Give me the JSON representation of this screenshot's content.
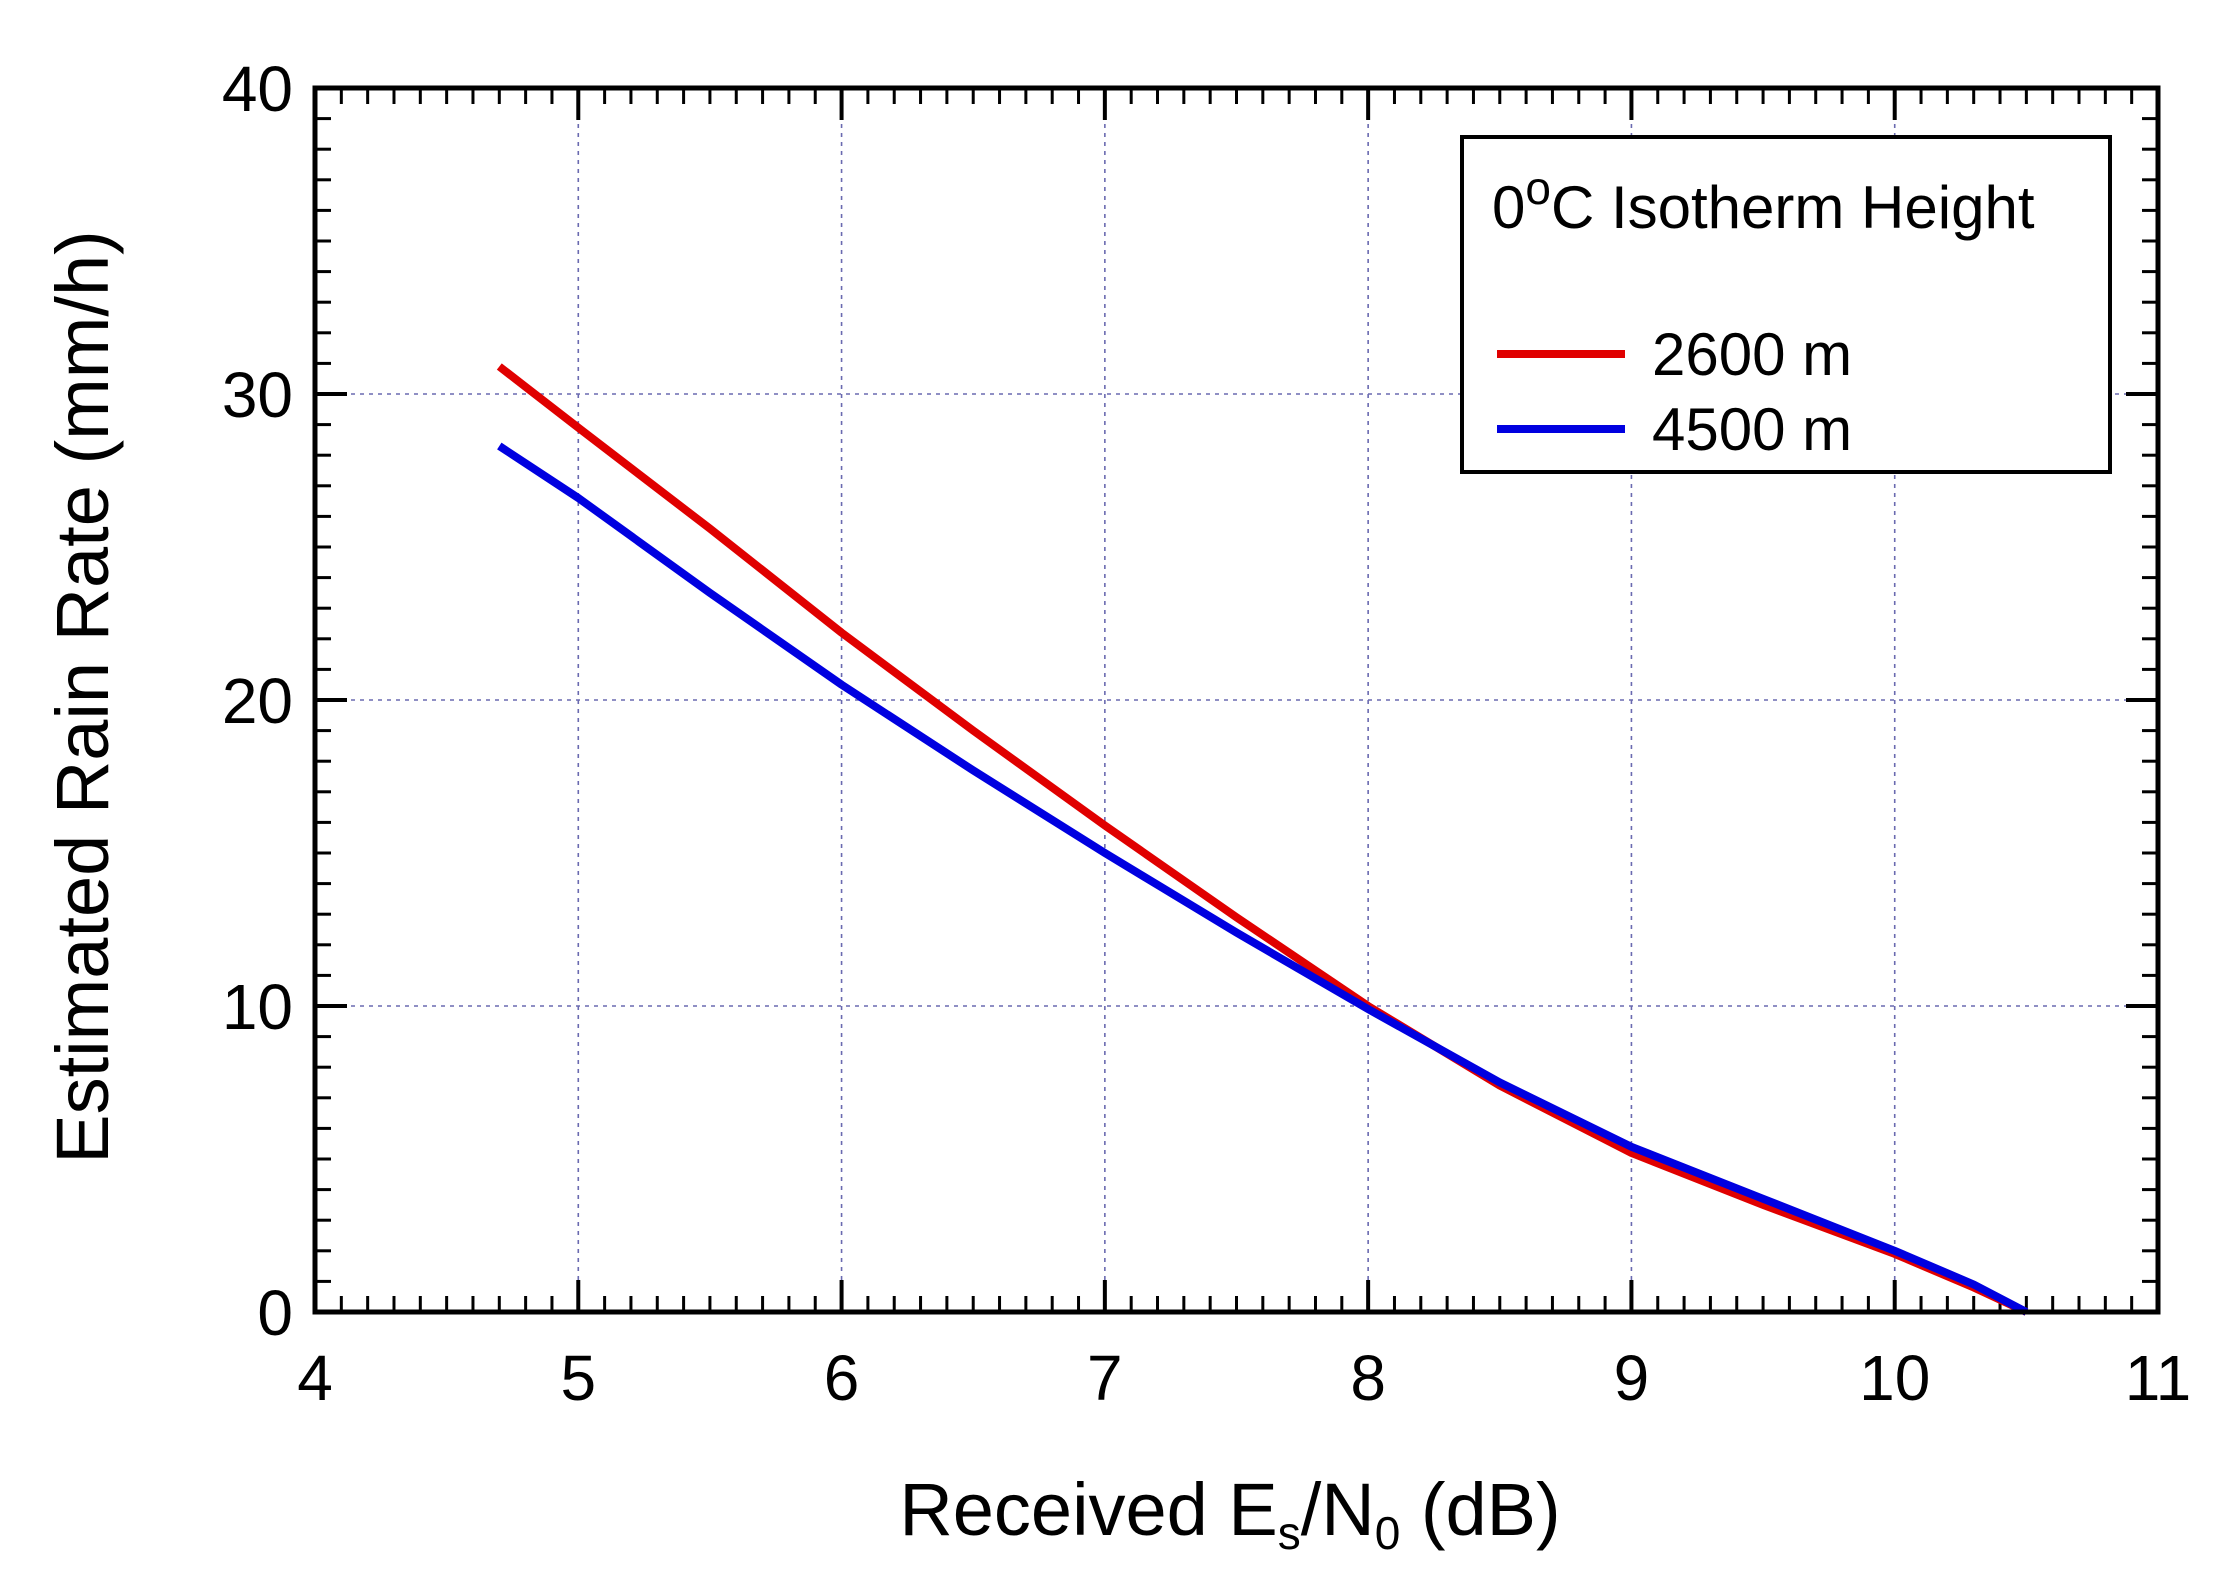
{
  "chart_data": {
    "type": "line",
    "title": "",
    "xlabel": {
      "prefix": "Received E",
      "sub1": "s",
      "middle": "/N",
      "sub2": "0",
      "suffix": " (dB)"
    },
    "ylabel": "Estimated Rain Rate (mm/h)",
    "xlim": [
      4,
      11
    ],
    "ylim": [
      0,
      40
    ],
    "xticks": [
      4,
      5,
      6,
      7,
      8,
      9,
      10,
      11
    ],
    "yticks": [
      0,
      10,
      20,
      30,
      40
    ],
    "grid": true,
    "legend": {
      "title_prefix": "0",
      "title_sup": "o",
      "title_suffix": "C Isotherm Height",
      "placement": "top-right"
    },
    "series": [
      {
        "name": "2600 m",
        "color": "#e00000",
        "x": [
          4.7,
          5.0,
          5.5,
          6.0,
          6.5,
          7.0,
          7.5,
          8.0,
          8.5,
          9.0,
          9.5,
          10.0,
          10.3,
          10.5
        ],
        "y": [
          30.9,
          28.9,
          25.6,
          22.2,
          19.0,
          15.9,
          12.9,
          10.0,
          7.4,
          5.2,
          3.5,
          1.9,
          0.8,
          0
        ]
      },
      {
        "name": "4500 m",
        "color": "#0000e0",
        "x": [
          4.7,
          5.0,
          5.5,
          6.0,
          6.5,
          7.0,
          7.5,
          8.0,
          8.5,
          9.0,
          9.5,
          10.0,
          10.3,
          10.5
        ],
        "y": [
          28.3,
          26.6,
          23.5,
          20.5,
          17.7,
          15.0,
          12.4,
          9.9,
          7.5,
          5.4,
          3.7,
          2.0,
          0.9,
          0
        ]
      }
    ]
  }
}
